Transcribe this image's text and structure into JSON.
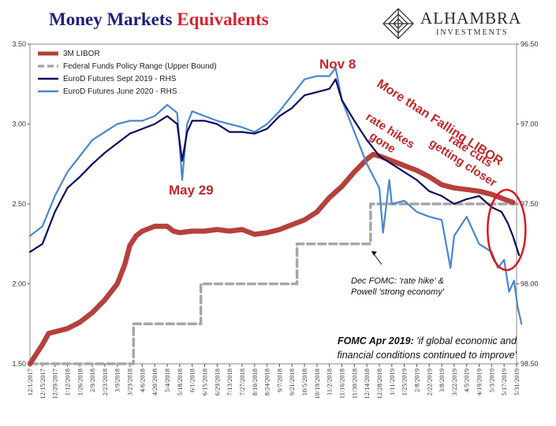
{
  "title": {
    "main": "Money Markets",
    "accent": "Equivalents"
  },
  "logo": {
    "name": "ALHAMBRA",
    "sub": "INVESTMENTS"
  },
  "colors": {
    "libor": "#b5413c",
    "fedfunds": "#a6a6a6",
    "sept2019": "#0b0b5c",
    "june2020": "#4a86d1",
    "annotation": "#c0272d",
    "circle": "#e0161f"
  },
  "annotations": {
    "nov8": "Nov 8",
    "may29": "May 29",
    "falling_libor": "More than Falling LIBOR",
    "rate_hikes": [
      "rate hikes",
      "gone"
    ],
    "rate_cuts": [
      "rate cuts",
      "getting closer"
    ],
    "dec_fomc": [
      "Dec FOMC: 'rate hike' &",
      "Powell 'strong economy'"
    ],
    "fomc_apr_bold": "FOMC Apr 2019:",
    "fomc_apr_rest": " 'if global economic and",
    "fomc_apr_line2": "financial conditions continued to improve'"
  },
  "chart_data": {
    "type": "line",
    "title": "Money Markets Equivalents",
    "x_ticks": [
      "12/1/2017",
      "12/15/2017",
      "12/29/2017",
      "1/12/2018",
      "1/26/2018",
      "2/9/2018",
      "2/23/2018",
      "3/9/2018",
      "3/23/2018",
      "4/6/2018",
      "4/20/2018",
      "5/4/2018",
      "5/18/2018",
      "6/1/2018",
      "6/15/2018",
      "6/29/2018",
      "7/13/2018",
      "7/27/2018",
      "8/10/2018",
      "8/24/2018",
      "9/7/2018",
      "9/21/2018",
      "10/5/2018",
      "10/19/2018",
      "11/2/2018",
      "11/16/2018",
      "11/30/2018",
      "12/14/2018",
      "12/28/2018",
      "1/11/2019",
      "1/25/2019",
      "2/8/2019",
      "2/22/2019",
      "3/8/2019",
      "3/22/2019",
      "4/5/2019",
      "4/19/2019",
      "5/3/2019",
      "5/17/2019",
      "5/31/2019"
    ],
    "y_left": {
      "ticks": [
        "1.50",
        "2.00",
        "2.50",
        "3.00",
        "3.50"
      ],
      "range": [
        1.5,
        3.5
      ]
    },
    "y_right": {
      "ticks": [
        "96.50",
        "97.00",
        "97.50",
        "98.00",
        "98.50"
      ],
      "range": [
        96.5,
        98.5
      ],
      "inverted": true
    },
    "legend": [
      "3M LIBOR",
      "Federal Funds Policy Range (Upper Bound)",
      "EuroD Futures Sept 2019 - RHS",
      "EuroD Futures June 2020 - RHS"
    ],
    "series": [
      {
        "name": "3M LIBOR",
        "axis": "left",
        "style": "thick",
        "points": [
          [
            0,
            1.5
          ],
          [
            1,
            1.62
          ],
          [
            1.5,
            1.69
          ],
          [
            2,
            1.7
          ],
          [
            3,
            1.72
          ],
          [
            4,
            1.76
          ],
          [
            5,
            1.82
          ],
          [
            6,
            1.9
          ],
          [
            7,
            2.0
          ],
          [
            7.6,
            2.12
          ],
          [
            8,
            2.24
          ],
          [
            8.5,
            2.3
          ],
          [
            9,
            2.33
          ],
          [
            10,
            2.36
          ],
          [
            11,
            2.36
          ],
          [
            11.5,
            2.33
          ],
          [
            12,
            2.32
          ],
          [
            13,
            2.33
          ],
          [
            14,
            2.33
          ],
          [
            15,
            2.34
          ],
          [
            16,
            2.33
          ],
          [
            17,
            2.34
          ],
          [
            18,
            2.31
          ],
          [
            19,
            2.32
          ],
          [
            20,
            2.34
          ],
          [
            21,
            2.37
          ],
          [
            22,
            2.4
          ],
          [
            23,
            2.45
          ],
          [
            24,
            2.54
          ],
          [
            25,
            2.61
          ],
          [
            26,
            2.7
          ],
          [
            27,
            2.78
          ],
          [
            27.5,
            2.81
          ],
          [
            28,
            2.8
          ],
          [
            29,
            2.77
          ],
          [
            30,
            2.74
          ],
          [
            31,
            2.71
          ],
          [
            32,
            2.67
          ],
          [
            33,
            2.62
          ],
          [
            34,
            2.6
          ],
          [
            35,
            2.59
          ],
          [
            36,
            2.58
          ],
          [
            37,
            2.56
          ],
          [
            38,
            2.53
          ],
          [
            38.7,
            2.51
          ]
        ]
      },
      {
        "name": "Federal Funds Policy Range (Upper Bound)",
        "axis": "left",
        "style": "dash",
        "points": [
          [
            0,
            1.5
          ],
          [
            8.3,
            1.5
          ],
          [
            8.3,
            1.75
          ],
          [
            13.7,
            1.75
          ],
          [
            13.7,
            2.0
          ],
          [
            21.4,
            2.0
          ],
          [
            21.4,
            2.25
          ],
          [
            27.3,
            2.25
          ],
          [
            27.3,
            2.5
          ],
          [
            39.2,
            2.5
          ]
        ]
      },
      {
        "name": "EuroD Futures Sept 2019 - RHS",
        "axis": "right",
        "points": [
          [
            0,
            97.8
          ],
          [
            1,
            97.75
          ],
          [
            2,
            97.55
          ],
          [
            3,
            97.4
          ],
          [
            4,
            97.33
          ],
          [
            5,
            97.25
          ],
          [
            6,
            97.18
          ],
          [
            7,
            97.12
          ],
          [
            8,
            97.06
          ],
          [
            9,
            97.03
          ],
          [
            10,
            97.0
          ],
          [
            11,
            96.95
          ],
          [
            11.8,
            97.0
          ],
          [
            12.2,
            97.23
          ],
          [
            12.6,
            97.05
          ],
          [
            13,
            96.98
          ],
          [
            14,
            96.98
          ],
          [
            15,
            97.0
          ],
          [
            16,
            97.05
          ],
          [
            17,
            97.05
          ],
          [
            18,
            97.06
          ],
          [
            19,
            97.03
          ],
          [
            20,
            96.95
          ],
          [
            21,
            96.9
          ],
          [
            22,
            96.82
          ],
          [
            23,
            96.8
          ],
          [
            24,
            96.78
          ],
          [
            24.5,
            96.72
          ],
          [
            25,
            96.85
          ],
          [
            26,
            96.98
          ],
          [
            27,
            97.1
          ],
          [
            28,
            97.2
          ],
          [
            29,
            97.25
          ],
          [
            30,
            97.3
          ],
          [
            31,
            97.35
          ],
          [
            32,
            97.42
          ],
          [
            33,
            97.45
          ],
          [
            34,
            97.5
          ],
          [
            35,
            97.47
          ],
          [
            36,
            97.45
          ],
          [
            37,
            97.52
          ],
          [
            37.8,
            97.55
          ],
          [
            38.3,
            97.62
          ],
          [
            38.7,
            97.7
          ],
          [
            39.2,
            97.82
          ]
        ]
      },
      {
        "name": "EuroD Futures June 2020 - RHS",
        "axis": "right",
        "points": [
          [
            0,
            97.7
          ],
          [
            1,
            97.64
          ],
          [
            2,
            97.45
          ],
          [
            3,
            97.3
          ],
          [
            4,
            97.2
          ],
          [
            5,
            97.1
          ],
          [
            6,
            97.05
          ],
          [
            7,
            97.0
          ],
          [
            8,
            96.98
          ],
          [
            9,
            96.98
          ],
          [
            10,
            96.95
          ],
          [
            11,
            96.88
          ],
          [
            11.8,
            96.93
          ],
          [
            12.2,
            97.35
          ],
          [
            12.6,
            97.0
          ],
          [
            13,
            96.92
          ],
          [
            14,
            96.95
          ],
          [
            15,
            96.98
          ],
          [
            16,
            97.0
          ],
          [
            17,
            97.02
          ],
          [
            18,
            97.05
          ],
          [
            19,
            97.0
          ],
          [
            20,
            96.92
          ],
          [
            21,
            96.82
          ],
          [
            22,
            96.72
          ],
          [
            23,
            96.7
          ],
          [
            24,
            96.7
          ],
          [
            24.5,
            96.65
          ],
          [
            25,
            96.85
          ],
          [
            26,
            97.05
          ],
          [
            27,
            97.25
          ],
          [
            28,
            97.4
          ],
          [
            28.3,
            97.68
          ],
          [
            28.8,
            97.35
          ],
          [
            29,
            97.5
          ],
          [
            30,
            97.48
          ],
          [
            31,
            97.55
          ],
          [
            32,
            97.58
          ],
          [
            33,
            97.6
          ],
          [
            33.7,
            97.9
          ],
          [
            34,
            97.7
          ],
          [
            35,
            97.58
          ],
          [
            36,
            97.75
          ],
          [
            37,
            97.8
          ],
          [
            37.5,
            97.9
          ],
          [
            38,
            97.85
          ],
          [
            38.4,
            98.05
          ],
          [
            38.8,
            97.98
          ],
          [
            39.1,
            98.15
          ],
          [
            39.4,
            98.25
          ]
        ]
      }
    ]
  }
}
